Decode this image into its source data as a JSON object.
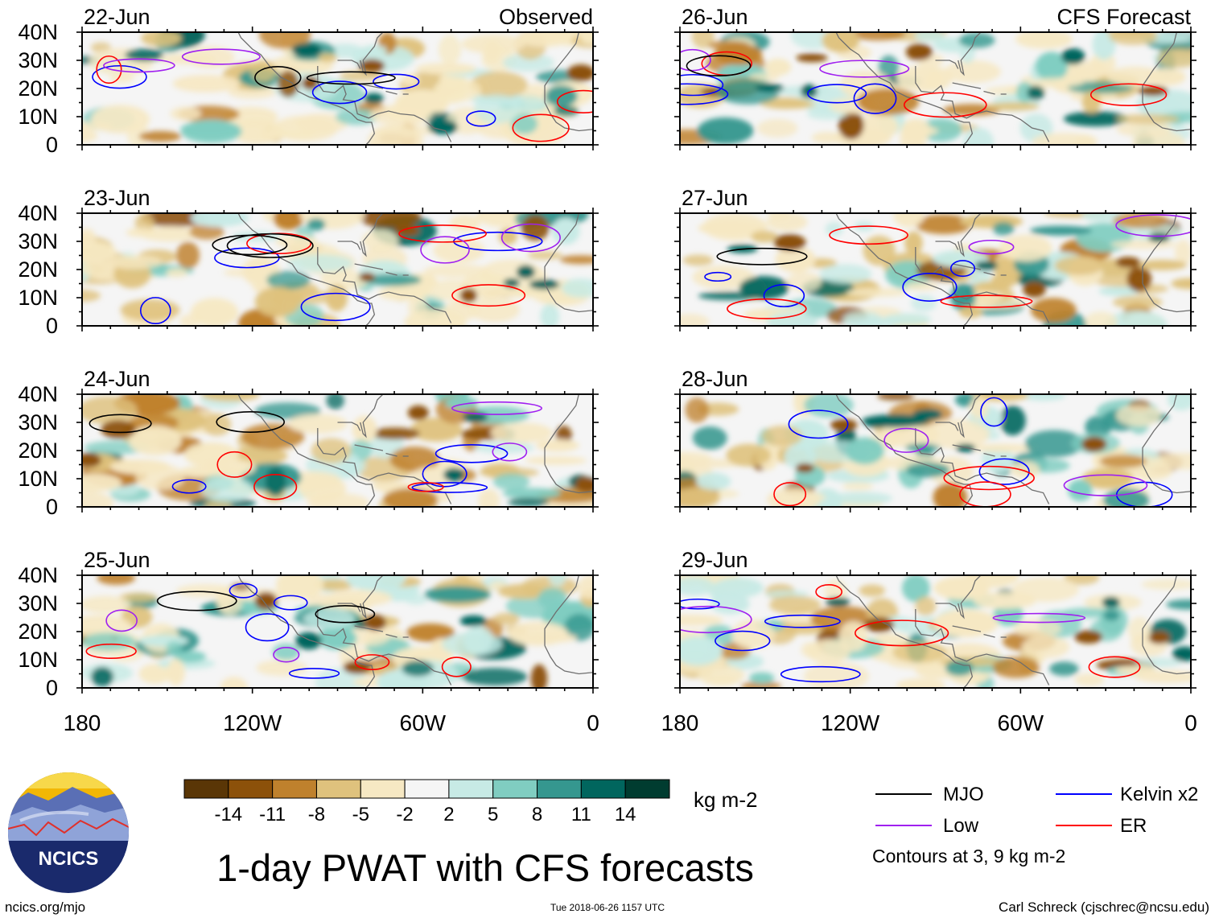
{
  "chart_data": {
    "type": "heatmap",
    "title": "1-day PWAT with CFS forecasts",
    "column_titles": {
      "observed": "Observed",
      "forecast": "CFS Forecast"
    },
    "observed_dates": [
      "22-Jun",
      "23-Jun",
      "24-Jun",
      "25-Jun"
    ],
    "forecast_dates": [
      "26-Jun",
      "27-Jun",
      "28-Jun",
      "29-Jun"
    ],
    "lat_ticks": [
      "40N",
      "30N",
      "20N",
      "10N",
      "0"
    ],
    "lat_values": [
      40,
      30,
      20,
      10,
      0
    ],
    "ylim": [
      0,
      40
    ],
    "lon_ticks": [
      "180",
      "120W",
      "60W",
      "0"
    ],
    "lon_values": [
      -180,
      -120,
      -60,
      0
    ],
    "xlim": [
      -180,
      0
    ],
    "colorbar": {
      "levels": [
        "-14",
        "-11",
        "-8",
        "-5",
        "-2",
        "2",
        "5",
        "8",
        "11",
        "14"
      ],
      "colors": [
        "#5a3606",
        "#8c510a",
        "#bf812d",
        "#dfc27d",
        "#f6e8c3",
        "#f5f5f5",
        "#c7eae5",
        "#80cdc1",
        "#35978f",
        "#01665e",
        "#003c30"
      ],
      "units": "kg m-2"
    },
    "legend": [
      {
        "label": "MJO",
        "color": "#000000"
      },
      {
        "label": "Kelvin x2",
        "color": "#0000ff"
      },
      {
        "label": "Low",
        "color": "#a020f0"
      },
      {
        "label": "ER",
        "color": "#ff0000"
      }
    ],
    "contour_note": "Contours at 3, 9 kg m-2"
  },
  "footer": {
    "logo_text": "NCICS",
    "url": "ncics.org/mjo",
    "timestamp": "Tue 2018-06-26 1157 UTC",
    "credit": "Carl Schreck (cjschrec@ncsu.edu)"
  }
}
